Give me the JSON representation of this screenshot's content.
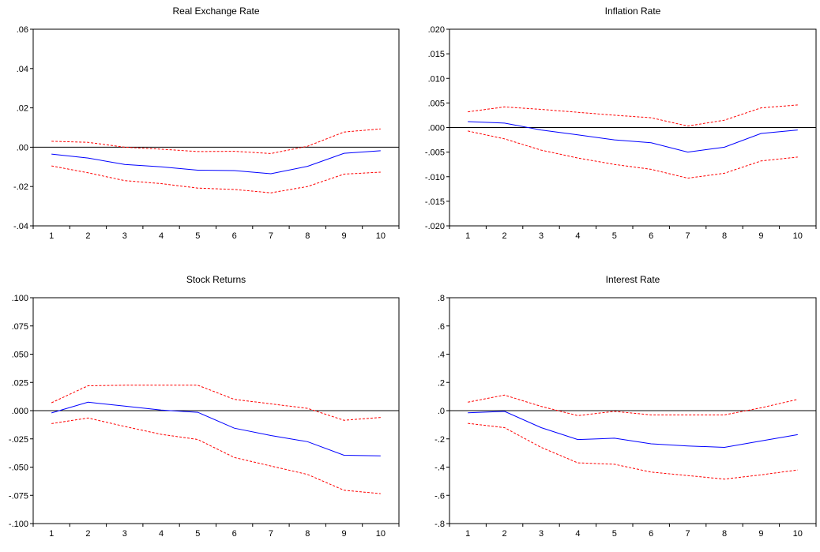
{
  "colors": {
    "response": "#0000ff",
    "confidence_band": "#ff0000",
    "zero_line": "#000000",
    "frame": "#000000"
  },
  "chart_data": [
    {
      "type": "line",
      "title": "Real Exchange Rate",
      "x": [
        1,
        2,
        3,
        4,
        5,
        6,
        7,
        8,
        9,
        10
      ],
      "ylim": [
        -0.04,
        0.06
      ],
      "y_ticks": [
        ".06",
        ".04",
        ".02",
        ".00",
        "-.02",
        "-.04"
      ],
      "y_tick_values": [
        0.06,
        0.04,
        0.02,
        0.0,
        -0.02,
        -0.04
      ],
      "grid": false,
      "series": [
        {
          "role": "response",
          "style": "solid",
          "values": [
            -0.0035,
            -0.0055,
            -0.0088,
            -0.01,
            -0.0117,
            -0.0119,
            -0.0135,
            -0.0097,
            -0.0031,
            -0.0018
          ]
        },
        {
          "role": "upper-band",
          "style": "dashed",
          "values": [
            0.003,
            0.0025,
            0.0,
            -0.001,
            -0.0022,
            -0.0021,
            -0.0032,
            0.0005,
            0.0077,
            0.0093
          ]
        },
        {
          "role": "lower-band",
          "style": "dashed",
          "values": [
            -0.0095,
            -0.013,
            -0.017,
            -0.0185,
            -0.0208,
            -0.0215,
            -0.0232,
            -0.02,
            -0.0137,
            -0.0127
          ]
        }
      ]
    },
    {
      "type": "line",
      "title": "Inflation Rate",
      "x": [
        1,
        2,
        3,
        4,
        5,
        6,
        7,
        8,
        9,
        10
      ],
      "ylim": [
        -0.02,
        0.02
      ],
      "y_ticks": [
        ".020",
        ".015",
        ".010",
        ".005",
        ".000",
        "-.005",
        "-.010",
        "-.015",
        "-.020"
      ],
      "y_tick_values": [
        0.02,
        0.015,
        0.01,
        0.005,
        0.0,
        -0.005,
        -0.01,
        -0.015,
        -0.02
      ],
      "grid": false,
      "series": [
        {
          "role": "response",
          "style": "solid",
          "values": [
            0.0012,
            0.0009,
            -0.0005,
            -0.0015,
            -0.0025,
            -0.0031,
            -0.005,
            -0.004,
            -0.0012,
            -0.0005
          ]
        },
        {
          "role": "upper-band",
          "style": "dashed",
          "values": [
            0.0032,
            0.0042,
            0.0037,
            0.0031,
            0.0025,
            0.002,
            0.0003,
            0.0015,
            0.004,
            0.0046
          ]
        },
        {
          "role": "lower-band",
          "style": "dashed",
          "values": [
            -0.0007,
            -0.0023,
            -0.0046,
            -0.0062,
            -0.0075,
            -0.0085,
            -0.0103,
            -0.0093,
            -0.0068,
            -0.006
          ]
        }
      ]
    },
    {
      "type": "line",
      "title": "Stock Returns",
      "x": [
        1,
        2,
        3,
        4,
        5,
        6,
        7,
        8,
        9,
        10
      ],
      "ylim": [
        -0.1,
        0.1
      ],
      "y_ticks": [
        ".100",
        ".075",
        ".050",
        ".025",
        ".000",
        "-.025",
        "-.050",
        "-.075",
        "-.100"
      ],
      "y_tick_values": [
        0.1,
        0.075,
        0.05,
        0.025,
        0.0,
        -0.025,
        -0.05,
        -0.075,
        -0.1
      ],
      "grid": false,
      "series": [
        {
          "role": "response",
          "style": "solid",
          "values": [
            -0.002,
            0.0075,
            0.004,
            0.0005,
            -0.0015,
            -0.0155,
            -0.022,
            -0.0275,
            -0.0395,
            -0.04
          ]
        },
        {
          "role": "upper-band",
          "style": "dashed",
          "values": [
            0.007,
            0.022,
            0.0225,
            0.0225,
            0.0225,
            0.01,
            0.006,
            0.002,
            -0.0085,
            -0.006
          ]
        },
        {
          "role": "lower-band",
          "style": "dashed",
          "values": [
            -0.0115,
            -0.0065,
            -0.014,
            -0.021,
            -0.0255,
            -0.0415,
            -0.049,
            -0.0565,
            -0.0705,
            -0.0735
          ]
        }
      ]
    },
    {
      "type": "line",
      "title": "Interest Rate",
      "x": [
        1,
        2,
        3,
        4,
        5,
        6,
        7,
        8,
        9,
        10
      ],
      "ylim": [
        -0.8,
        0.8
      ],
      "y_ticks": [
        ".8",
        ".6",
        ".4",
        ".2",
        ".0",
        "-.2",
        "-.4",
        "-.6",
        "-.8"
      ],
      "y_tick_values": [
        0.8,
        0.6,
        0.4,
        0.2,
        0.0,
        -0.2,
        -0.4,
        -0.6,
        -0.8
      ],
      "grid": false,
      "series": [
        {
          "role": "response",
          "style": "solid",
          "values": [
            -0.015,
            -0.005,
            -0.12,
            -0.205,
            -0.195,
            -0.235,
            -0.25,
            -0.26,
            -0.215,
            -0.17
          ]
        },
        {
          "role": "upper-band",
          "style": "dashed",
          "values": [
            0.06,
            0.11,
            0.03,
            -0.035,
            -0.005,
            -0.03,
            -0.03,
            -0.03,
            0.02,
            0.08
          ]
        },
        {
          "role": "lower-band",
          "style": "dashed",
          "values": [
            -0.09,
            -0.12,
            -0.26,
            -0.37,
            -0.38,
            -0.435,
            -0.46,
            -0.485,
            -0.455,
            -0.42
          ]
        }
      ]
    }
  ]
}
